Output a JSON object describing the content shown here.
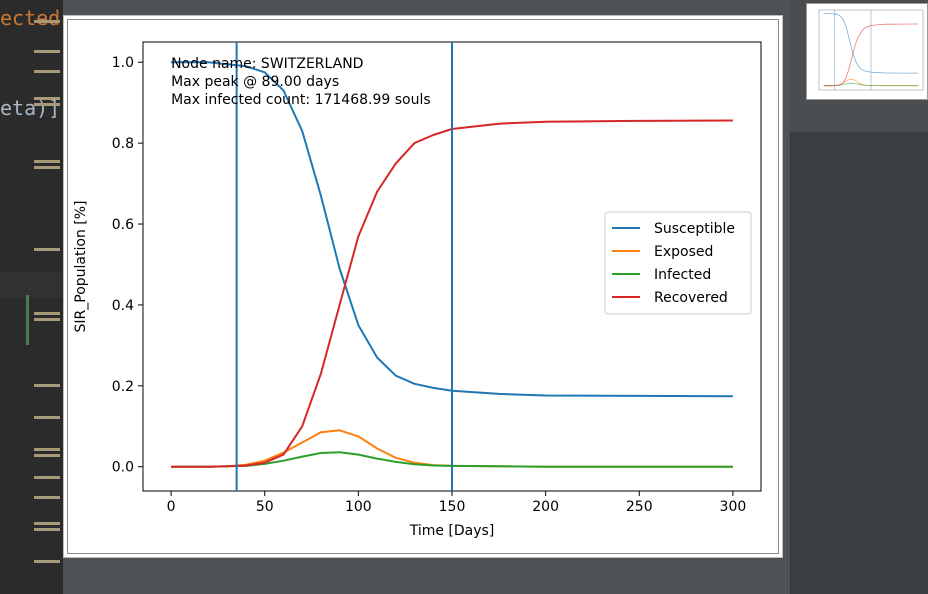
{
  "editor": {
    "code_fragments": [
      "ected",
      "eta)]"
    ]
  },
  "chart_data": {
    "type": "line",
    "annotation": [
      "Node name: SWITZERLAND",
      "Max peak @ 89.00 days",
      "Max infected count: 171468.99 souls"
    ],
    "xlabel": "Time [Days]",
    "ylabel": "SIR_Population [%]",
    "xlim": [
      -15,
      315
    ],
    "ylim": [
      -0.06,
      1.05
    ],
    "xticks": [
      0,
      50,
      100,
      150,
      200,
      250,
      300
    ],
    "yticks": [
      0.0,
      0.2,
      0.4,
      0.6,
      0.8,
      1.0
    ],
    "xtick_labels": [
      "0",
      "50",
      "100",
      "150",
      "200",
      "250",
      "300"
    ],
    "ytick_labels": [
      "0.0",
      "0.2",
      "0.4",
      "0.6",
      "0.8",
      "1.0"
    ],
    "vlines": [
      35,
      150
    ],
    "vline_color": "#1f77b4",
    "legend_position": "center-right",
    "grid": false,
    "x": [
      0,
      20,
      30,
      40,
      50,
      60,
      70,
      80,
      90,
      100,
      110,
      120,
      130,
      140,
      150,
      175,
      200,
      250,
      300
    ],
    "series": [
      {
        "name": "Susceptible",
        "color": "#1f77b4",
        "values": [
          1.0,
          1.0,
          0.995,
          0.99,
          0.975,
          0.93,
          0.83,
          0.67,
          0.49,
          0.35,
          0.27,
          0.225,
          0.205,
          0.195,
          0.188,
          0.18,
          0.176,
          0.175,
          0.174
        ]
      },
      {
        "name": "Exposed",
        "color": "#ff7f0e",
        "values": [
          0.0,
          0.0,
          0.001,
          0.005,
          0.015,
          0.035,
          0.06,
          0.085,
          0.09,
          0.075,
          0.045,
          0.022,
          0.01,
          0.004,
          0.002,
          0.001,
          0.0,
          0.0,
          0.0
        ]
      },
      {
        "name": "Infected",
        "color": "#2ca02c",
        "values": [
          0.0,
          0.0,
          0.001,
          0.002,
          0.007,
          0.015,
          0.025,
          0.034,
          0.036,
          0.03,
          0.02,
          0.012,
          0.006,
          0.003,
          0.002,
          0.001,
          0.0,
          0.0,
          0.0
        ]
      },
      {
        "name": "Recovered",
        "color": "#d62728",
        "values": [
          0.0,
          0.0,
          0.001,
          0.003,
          0.01,
          0.03,
          0.1,
          0.23,
          0.4,
          0.57,
          0.68,
          0.75,
          0.8,
          0.82,
          0.835,
          0.848,
          0.853,
          0.855,
          0.856
        ]
      }
    ]
  }
}
